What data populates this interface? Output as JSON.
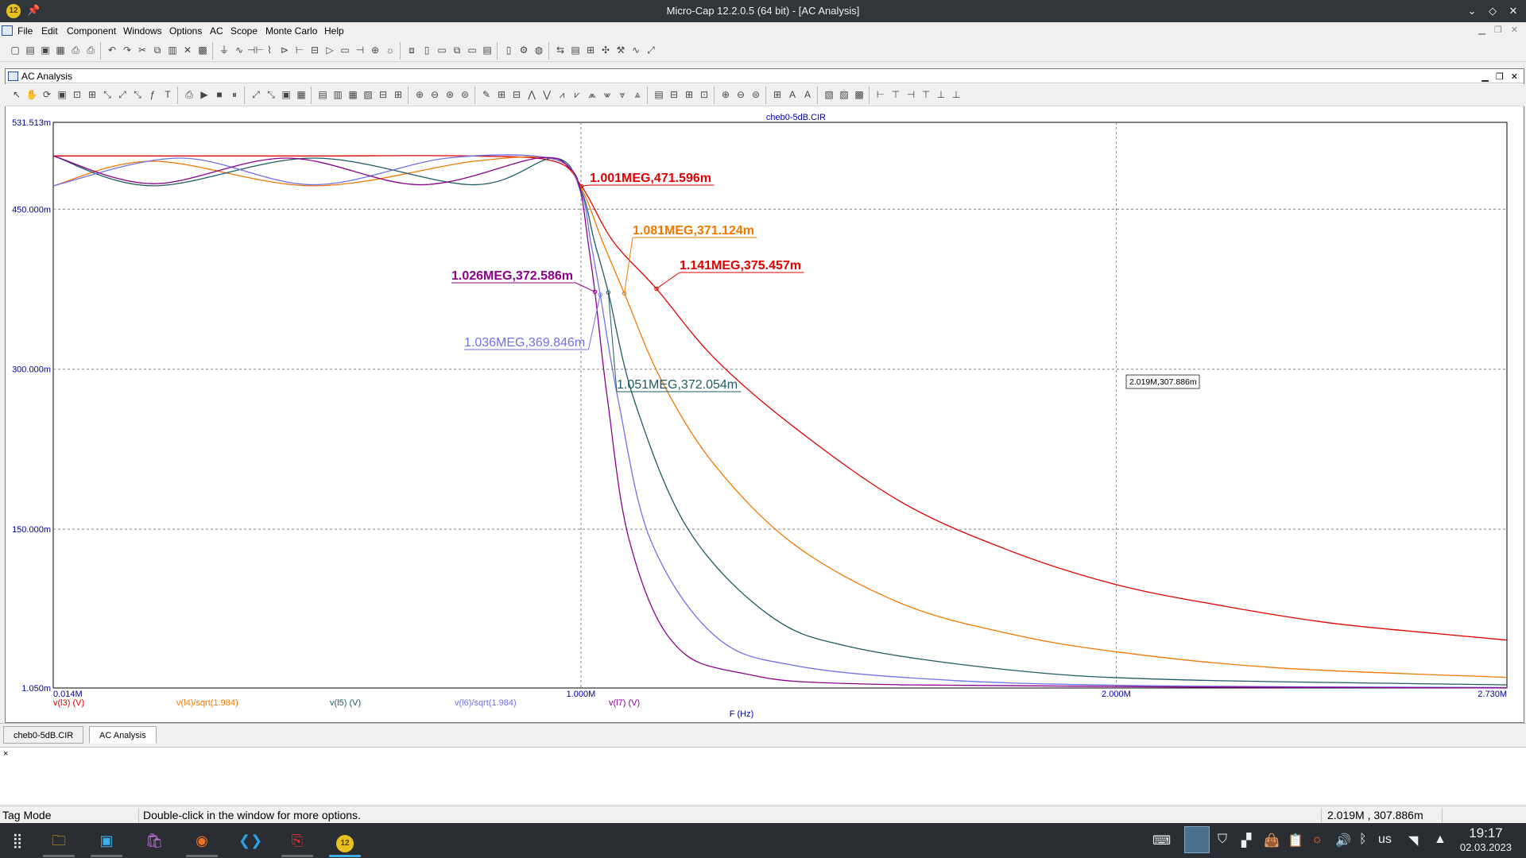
{
  "window": {
    "title": "Micro-Cap 12.2.0.5 (64 bit) - [AC Analysis]",
    "app_badge": "12"
  },
  "menu": {
    "items": [
      "File",
      "Edit",
      "Component",
      "Windows",
      "Options",
      "AC",
      "Scope",
      "Monte Carlo",
      "Help"
    ]
  },
  "child_window": {
    "title": "AC Analysis"
  },
  "chart_data": {
    "type": "line",
    "title": "cheb0-5dB.CIR",
    "xlabel": "F (Hz)",
    "ylabel": "",
    "xlim": [
      0.014,
      2.73
    ],
    "ylim": [
      0.00105,
      0.531513
    ],
    "x_tick_labels": [
      {
        "value": 0.014,
        "label": "0.014M"
      },
      {
        "value": 1.0,
        "label": "1.000M"
      },
      {
        "value": 2.0,
        "label": "2.000M"
      },
      {
        "value": 2.73,
        "label": "2.730M"
      }
    ],
    "y_tick_labels": [
      {
        "value": 0.531513,
        "label": "531.513m"
      },
      {
        "value": 0.45,
        "label": "450.000m"
      },
      {
        "value": 0.3,
        "label": "300.000m"
      },
      {
        "value": 0.15,
        "label": "150.000m"
      },
      {
        "value": 0.00105,
        "label": "1.050m"
      }
    ],
    "grid": true,
    "legend_placement": "bottom",
    "series": [
      {
        "name": "v(l3) (V)",
        "color": "#e00000",
        "cutoff": 1.141,
        "points": [
          [
            0.014,
            0.5
          ],
          [
            0.2,
            0.5
          ],
          [
            0.5,
            0.5
          ],
          [
            0.8,
            0.5
          ],
          [
            0.95,
            0.495
          ],
          [
            1.001,
            0.4716
          ],
          [
            1.06,
            0.42
          ],
          [
            1.141,
            0.3755
          ],
          [
            1.25,
            0.31
          ],
          [
            1.4,
            0.245
          ],
          [
            1.6,
            0.175
          ],
          [
            1.8,
            0.13
          ],
          [
            2.0,
            0.098
          ],
          [
            2.2,
            0.078
          ],
          [
            2.4,
            0.062
          ],
          [
            2.6,
            0.052
          ],
          [
            2.73,
            0.046
          ]
        ]
      },
      {
        "name": "v(l4)/sqrt(1.984)",
        "color": "#f07800",
        "cutoff": 1.081,
        "points": [
          [
            0.014,
            0.472
          ],
          [
            0.2,
            0.495
          ],
          [
            0.5,
            0.472
          ],
          [
            0.8,
            0.495
          ],
          [
            0.95,
            0.497
          ],
          [
            1.0,
            0.47
          ],
          [
            1.04,
            0.42
          ],
          [
            1.081,
            0.3711
          ],
          [
            1.15,
            0.29
          ],
          [
            1.25,
            0.21
          ],
          [
            1.4,
            0.135
          ],
          [
            1.6,
            0.08
          ],
          [
            1.8,
            0.052
          ],
          [
            2.0,
            0.035
          ],
          [
            2.3,
            0.02
          ],
          [
            2.73,
            0.011
          ]
        ]
      },
      {
        "name": "v(l5) (V)",
        "color": "#1e5a64",
        "cutoff": 1.051,
        "points": [
          [
            0.014,
            0.5
          ],
          [
            0.2,
            0.472
          ],
          [
            0.5,
            0.498
          ],
          [
            0.8,
            0.473
          ],
          [
            0.95,
            0.498
          ],
          [
            1.0,
            0.468
          ],
          [
            1.025,
            0.42
          ],
          [
            1.051,
            0.3721
          ],
          [
            1.1,
            0.27
          ],
          [
            1.2,
            0.15
          ],
          [
            1.35,
            0.07
          ],
          [
            1.5,
            0.04
          ],
          [
            1.8,
            0.018
          ],
          [
            2.1,
            0.009
          ],
          [
            2.73,
            0.004
          ]
        ]
      },
      {
        "name": "v(l6)/sqrt(1.984)",
        "color": "#7070e8",
        "cutoff": 1.036,
        "points": [
          [
            0.014,
            0.472
          ],
          [
            0.25,
            0.498
          ],
          [
            0.5,
            0.473
          ],
          [
            0.75,
            0.498
          ],
          [
            0.95,
            0.497
          ],
          [
            1.0,
            0.466
          ],
          [
            1.018,
            0.42
          ],
          [
            1.036,
            0.3698
          ],
          [
            1.07,
            0.27
          ],
          [
            1.13,
            0.14
          ],
          [
            1.25,
            0.05
          ],
          [
            1.4,
            0.022
          ],
          [
            1.7,
            0.008
          ],
          [
            2.1,
            0.003
          ],
          [
            2.73,
            0.0015
          ]
        ]
      },
      {
        "name": "v(l7) (V)",
        "color": "#8a008a",
        "cutoff": 1.026,
        "points": [
          [
            0.014,
            0.5
          ],
          [
            0.2,
            0.474
          ],
          [
            0.45,
            0.498
          ],
          [
            0.7,
            0.473
          ],
          [
            0.92,
            0.498
          ],
          [
            0.98,
            0.488
          ],
          [
            1.0,
            0.465
          ],
          [
            1.013,
            0.42
          ],
          [
            1.026,
            0.3726
          ],
          [
            1.05,
            0.27
          ],
          [
            1.09,
            0.14
          ],
          [
            1.17,
            0.045
          ],
          [
            1.3,
            0.015
          ],
          [
            1.6,
            0.004
          ],
          [
            2.73,
            0.00105
          ]
        ]
      }
    ],
    "annotations": [
      {
        "text": "1.001MEG,471.596m",
        "color": "#e00000",
        "weight": "bold",
        "x": 1.001,
        "y": 0.471596
      },
      {
        "text": "1.081MEG,371.124m",
        "color": "#f07800",
        "weight": "bold",
        "x": 1.081,
        "y": 0.371124
      },
      {
        "text": "1.141MEG,375.457m",
        "color": "#e00000",
        "weight": "bold",
        "x": 1.141,
        "y": 0.375457
      },
      {
        "text": "1.026MEG,372.586m",
        "color": "#8a008a",
        "weight": "bold",
        "x": 1.026,
        "y": 0.372586
      },
      {
        "text": "1.036MEG,369.846m",
        "color": "#7070e8",
        "weight": "normal",
        "x": 1.036,
        "y": 0.369846
      },
      {
        "text": "1.051MEG,372.054m",
        "color": "#1e5a64",
        "weight": "normal",
        "x": 1.051,
        "y": 0.372054
      }
    ],
    "cursor_readout": "2.019M,307.886m"
  },
  "tabs": [
    {
      "label": "cheb0-5dB.CIR",
      "active": false
    },
    {
      "label": "AC Analysis",
      "active": true
    }
  ],
  "output_pane": {
    "close_glyph": "×"
  },
  "status": {
    "mode": "Tag Mode",
    "hint": "Double-click in the window for more options.",
    "coords": "2.019M , 307.886m"
  },
  "taskbar": {
    "time": "19:17",
    "date": "02.03.2023",
    "keyboard_layout": "us"
  }
}
